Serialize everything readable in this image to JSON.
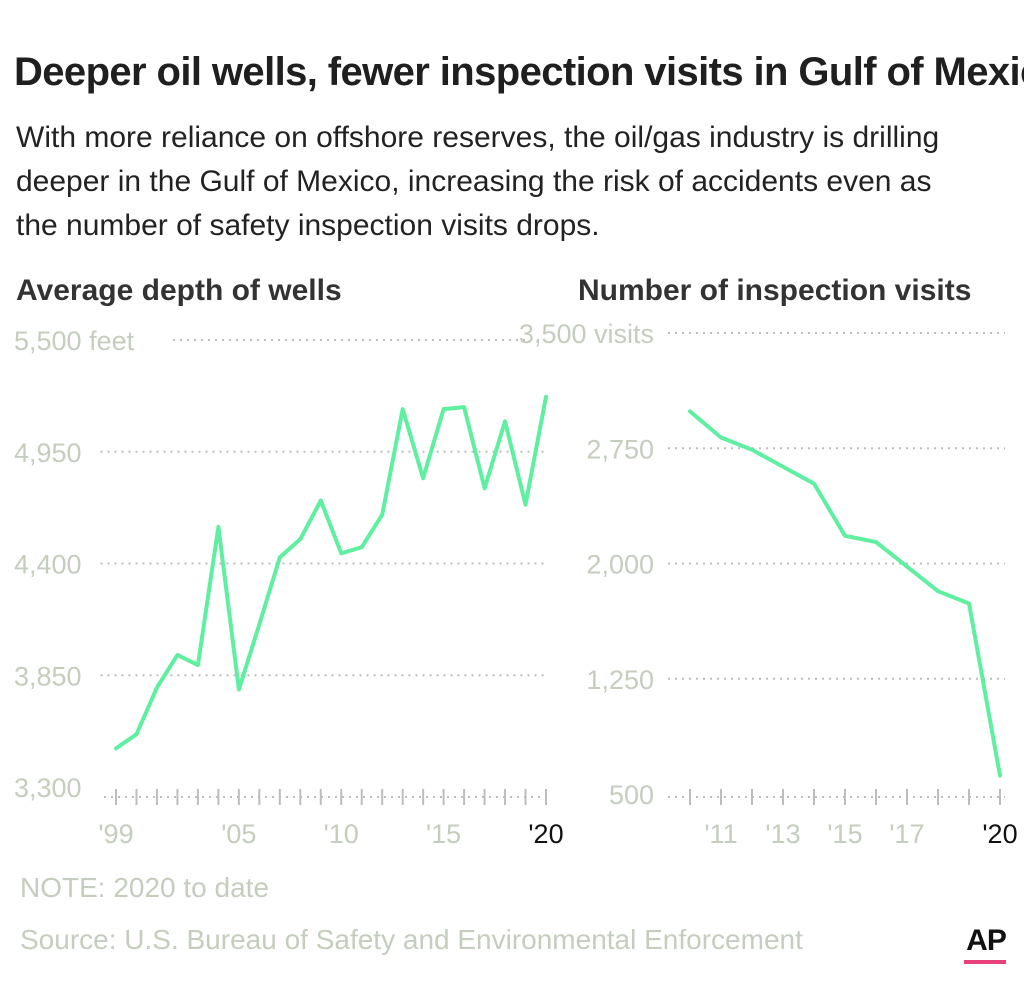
{
  "headline": "Deeper oil wells, fewer inspection visits in Gulf of Mexico",
  "subhead": "With more reliance on offshore reserves, the oil/gas industry is drilling deeper in the Gulf of Mexico, increasing the risk of accidents even as the number of safety inspection visits drops.",
  "note": "NOTE: 2020 to date",
  "source": "Source: U.S. Bureau of Safety and Environmental Enforcement",
  "logo": "AP",
  "colors": {
    "line": "#5ef0a0",
    "axis_text": "#c5cdbf",
    "accent": "#e8407a"
  },
  "chart_data": [
    {
      "type": "line",
      "title": "Average depth of wells",
      "y_ticks": [
        "5,500 feet",
        "4,950",
        "4,400",
        "3,850",
        "3,300"
      ],
      "y_tick_values": [
        5500,
        4950,
        4400,
        3850,
        3300
      ],
      "ylim": [
        3300,
        5500
      ],
      "xlim": [
        1999,
        2020
      ],
      "x_tick_labels": [
        {
          "year": 1999,
          "label": "'99"
        },
        {
          "year": 2005,
          "label": "'05"
        },
        {
          "year": 2010,
          "label": "'10"
        },
        {
          "year": 2015,
          "label": "'15"
        },
        {
          "year": 2020,
          "label": "'20"
        }
      ],
      "grid": true,
      "series": [
        {
          "x": [
            1999,
            2000,
            2001,
            2002,
            2003,
            2004,
            2005,
            2006,
            2007,
            2008,
            2009,
            2010,
            2011,
            2012,
            2013,
            2014,
            2015,
            2016,
            2017,
            2018,
            2019,
            2020
          ],
          "y": [
            3490,
            3560,
            3790,
            3950,
            3900,
            4580,
            3780,
            4100,
            4430,
            4520,
            4710,
            4450,
            4480,
            4640,
            5160,
            4820,
            5160,
            5170,
            4770,
            5100,
            4690,
            5220
          ]
        }
      ]
    },
    {
      "type": "line",
      "title": "Number of inspection visits",
      "y_ticks": [
        "3,500 visits",
        "2,750",
        "2,000",
        "1,250",
        "500"
      ],
      "y_tick_values": [
        3500,
        2750,
        2000,
        1250,
        500
      ],
      "ylim": [
        500,
        3500
      ],
      "xlim": [
        2010,
        2020
      ],
      "x_tick_labels": [
        {
          "year": 2011,
          "label": "'11"
        },
        {
          "year": 2013,
          "label": "'13"
        },
        {
          "year": 2015,
          "label": "'15"
        },
        {
          "year": 2017,
          "label": "'17"
        },
        {
          "year": 2020,
          "label": "'20"
        }
      ],
      "grid": true,
      "series": [
        {
          "x": [
            2010,
            2011,
            2012,
            2013,
            2014,
            2015,
            2016,
            2017,
            2018,
            2019,
            2020
          ],
          "y": [
            2990,
            2820,
            2740,
            2630,
            2520,
            2180,
            2140,
            1980,
            1820,
            1740,
            620
          ]
        }
      ]
    }
  ]
}
